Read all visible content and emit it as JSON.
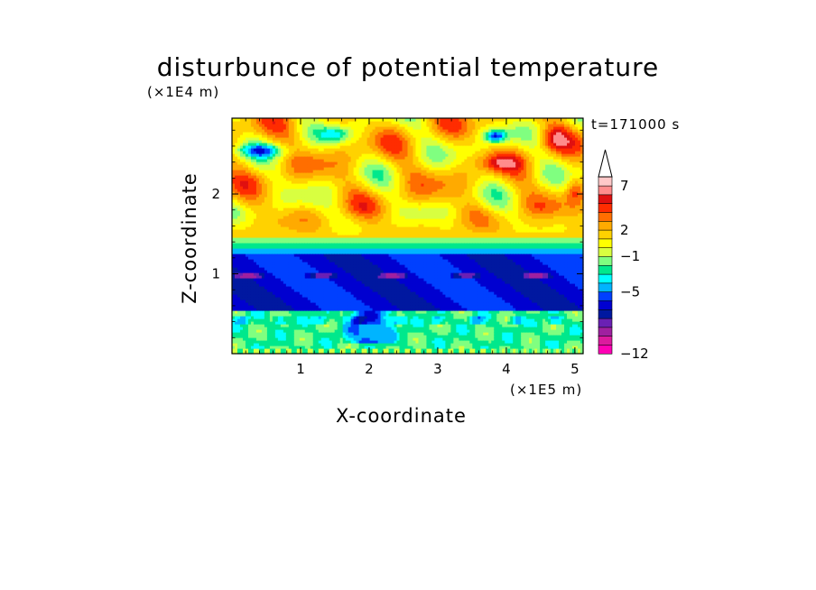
{
  "chart_data": {
    "type": "heatmap",
    "title": "disturbunce of potential temperature",
    "xlabel": "X-coordinate",
    "ylabel": "Z-coordinate",
    "x_unit": "(×1E5 m)",
    "y_unit": "(×1E4 m)",
    "annotation": "t=171000 s",
    "xlim": [
      0,
      5.12
    ],
    "ylim": [
      0,
      2.95
    ],
    "x_ticks": [
      "1",
      "2",
      "3",
      "4",
      "5"
    ],
    "y_ticks": [
      "1",
      "2"
    ],
    "colorbar": {
      "levels": [
        -12,
        -11,
        -10,
        -9,
        -8,
        -7,
        -6,
        -5,
        -4,
        -3,
        -2,
        -1,
        0,
        1,
        2,
        3,
        4,
        5,
        6,
        7,
        8,
        9
      ],
      "labels": [
        "−12",
        "−5",
        "−1",
        "2",
        "7"
      ],
      "label_values": [
        -12,
        -5,
        -1,
        2,
        7
      ],
      "extend": "max",
      "colors": [
        "#ff00b4",
        "#dc1a9e",
        "#a020a0",
        "#6a20b4",
        "#0018a0",
        "#0000d0",
        "#0040ff",
        "#00b4ff",
        "#00ffff",
        "#00e88c",
        "#80ff80",
        "#d8ff40",
        "#ffff00",
        "#ffd200",
        "#ffaa00",
        "#ff6e00",
        "#ff2c00",
        "#e01010",
        "#ff8c8c",
        "#ffc8c8"
      ]
    },
    "layers": [
      {
        "z_range": [
          0.0,
          0.05
        ],
        "value_range": [
          -1,
          1
        ],
        "description_color": "#80ff80"
      },
      {
        "z_range": [
          0.05,
          0.6
        ],
        "value_range": [
          -3,
          -1
        ],
        "description_color": "#00ffff"
      },
      {
        "z_range": [
          0.6,
          1.25
        ],
        "value_range": [
          -8,
          -5
        ],
        "description_color": "#0000d0"
      },
      {
        "z_range": [
          1.25,
          1.45
        ],
        "value_range": [
          -4,
          -2
        ],
        "description_color": "#00b4ff"
      },
      {
        "z_range": [
          1.45,
          2.95
        ],
        "value_range": [
          -1,
          4
        ],
        "description_color": "#ffff00"
      }
    ]
  }
}
